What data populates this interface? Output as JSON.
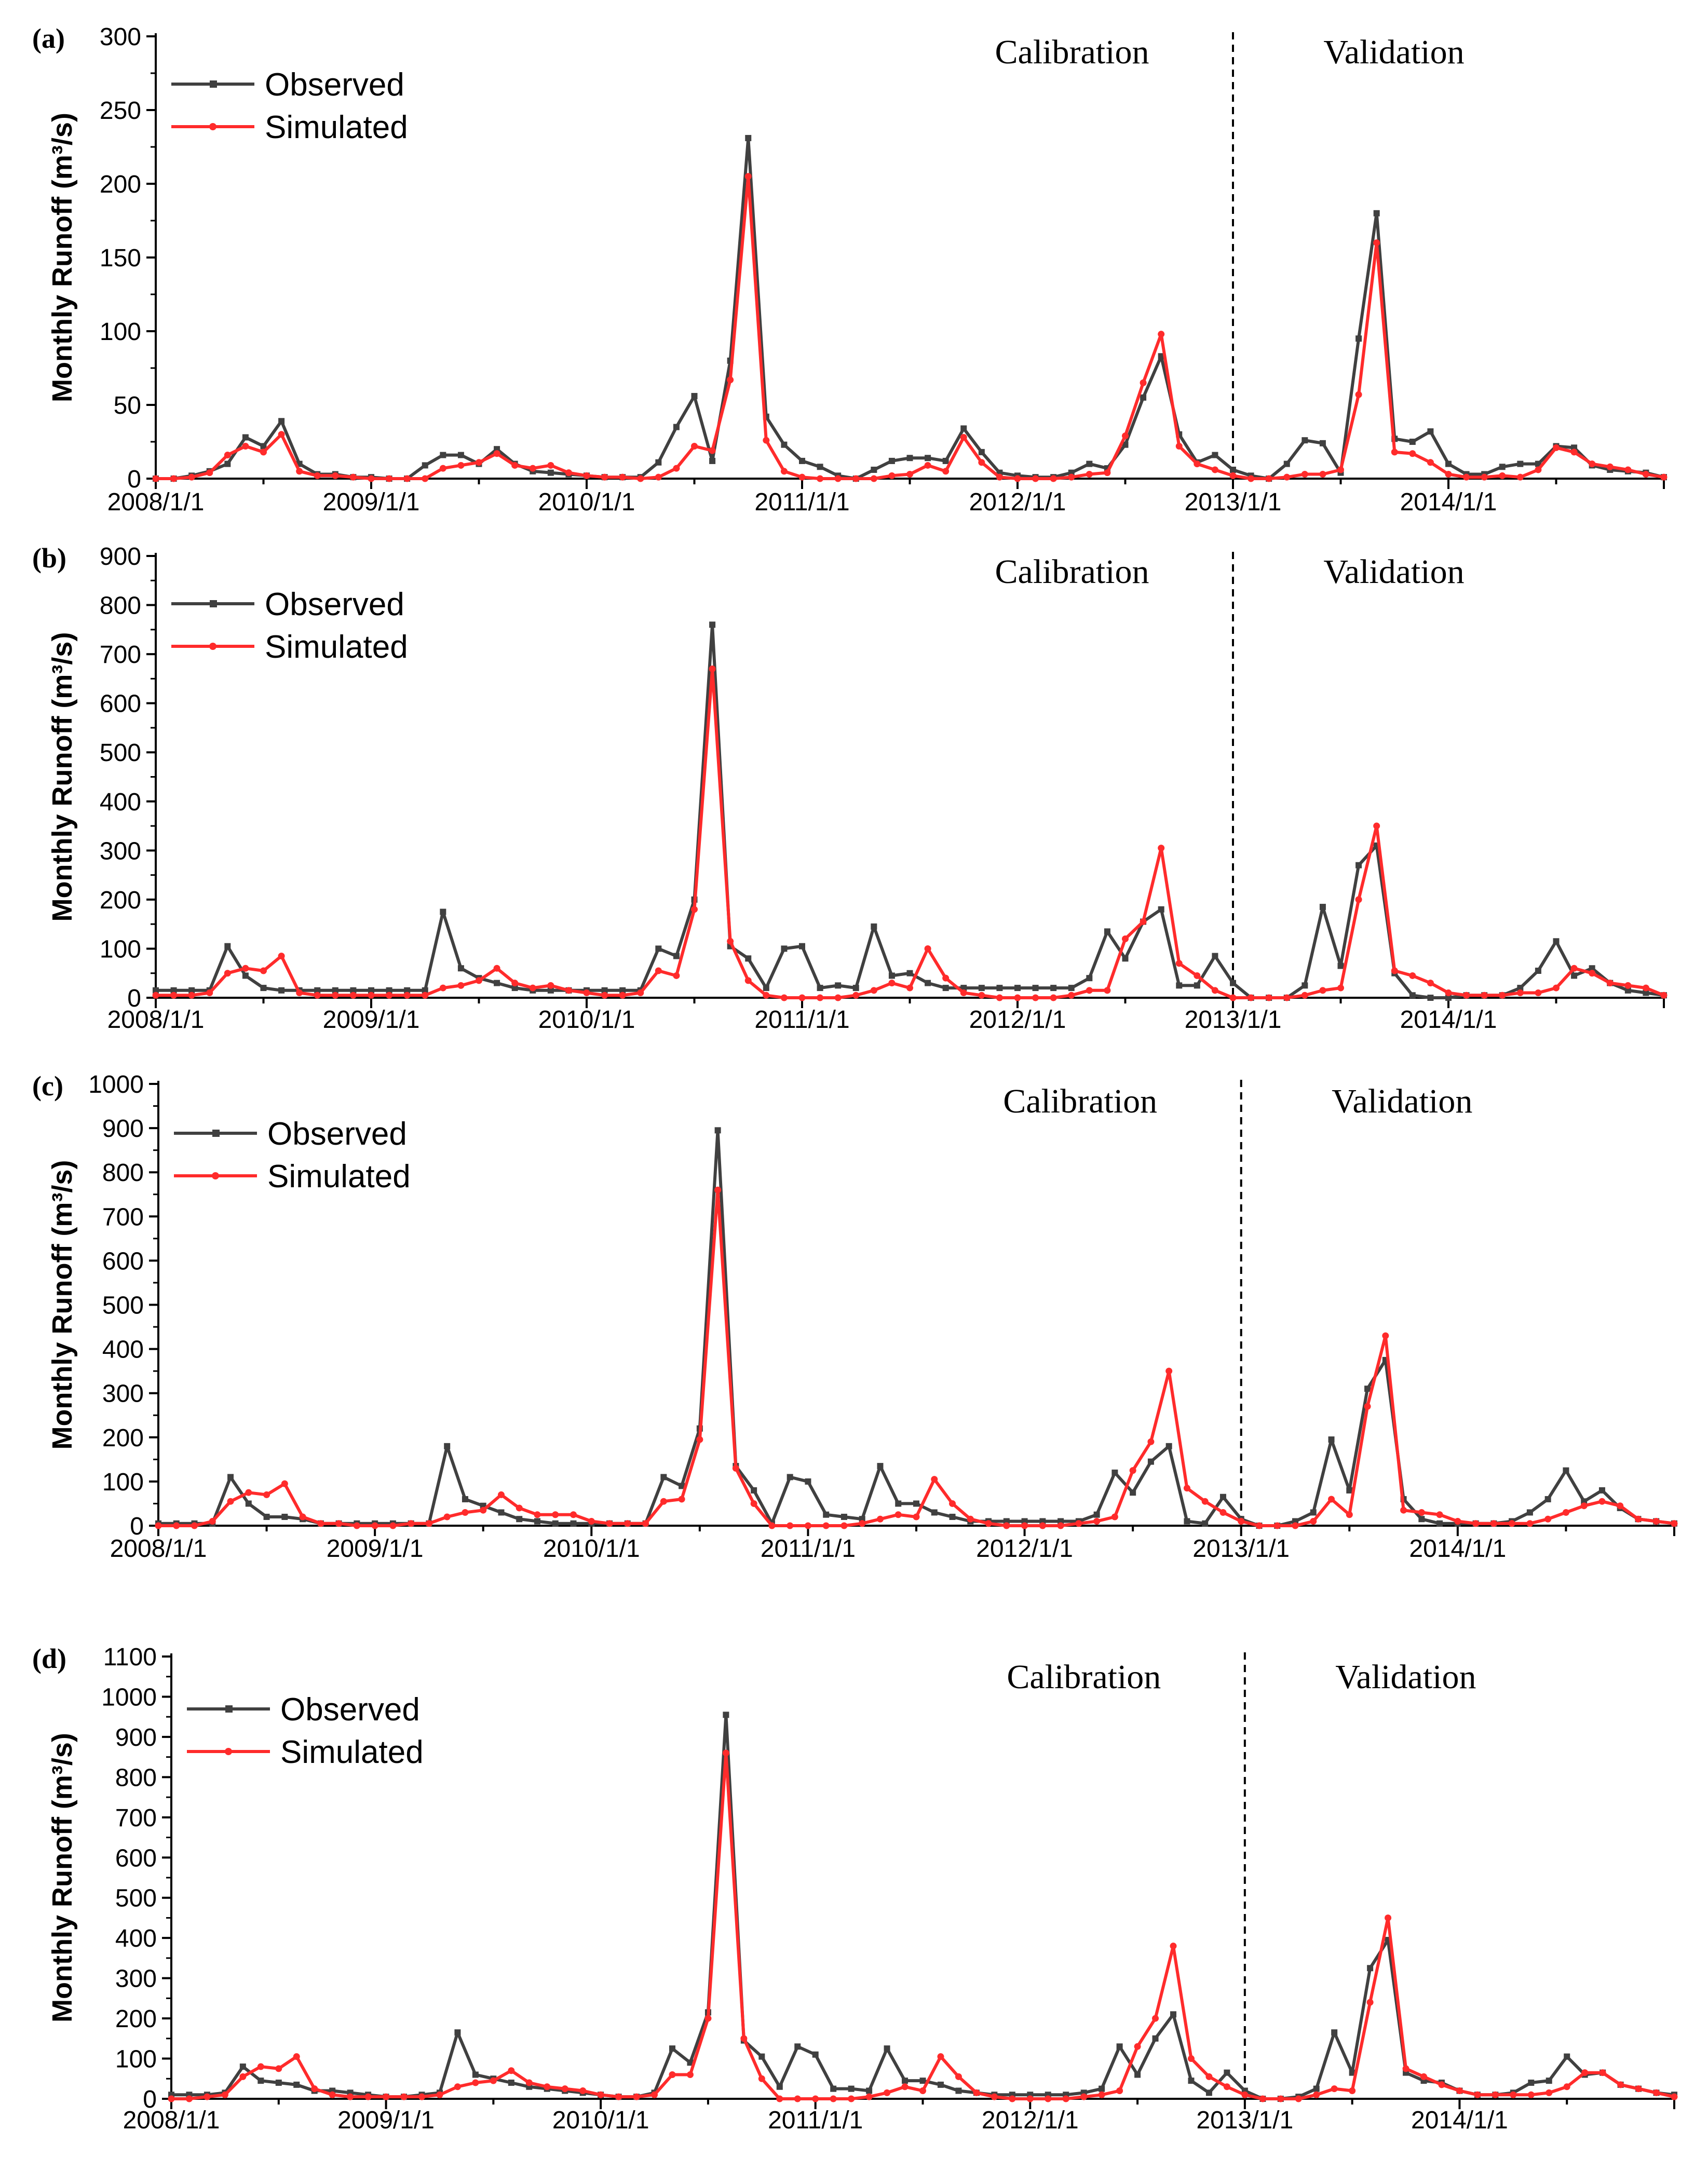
{
  "colors": {
    "observed": "#404040",
    "simulated": "#ff2b2b",
    "axis": "#000000"
  },
  "chart_data": [
    {
      "type": "line",
      "panel_label": "(a)",
      "ylabel": "Monthly Runoff (m³/s)",
      "ylim": [
        0,
        300
      ],
      "yticks": [
        0,
        50,
        100,
        150,
        200,
        250,
        300
      ],
      "xticks": [
        "2008/1/1",
        "2009/1/1",
        "2010/1/1",
        "2011/1/1",
        "2012/1/1",
        "2013/1/1",
        "2014/1/1"
      ],
      "split_month": 60,
      "period_labels": [
        "Calibration",
        "Validation"
      ],
      "legend": [
        "Observed",
        "Simulated"
      ],
      "series": [
        {
          "name": "Observed",
          "values": [
            0,
            0,
            2,
            5,
            10,
            28,
            22,
            39,
            10,
            3,
            3,
            1,
            1,
            0,
            0,
            9,
            16,
            16,
            10,
            20,
            10,
            5,
            4,
            3,
            2,
            1,
            1,
            1,
            11,
            35,
            56,
            12,
            80,
            231,
            42,
            23,
            12,
            8,
            2,
            0,
            6,
            12,
            14,
            14,
            12,
            34,
            18,
            4,
            2,
            1,
            1,
            4,
            10,
            7,
            23,
            55,
            83,
            30,
            11,
            16,
            6,
            2,
            0,
            10,
            26,
            24,
            4,
            95,
            180,
            27,
            25,
            32,
            10,
            3,
            3,
            8,
            10,
            10,
            22,
            21,
            9,
            6,
            5,
            4,
            1
          ]
        },
        {
          "name": "Simulated",
          "values": [
            0,
            0,
            1,
            4,
            16,
            22,
            18,
            30,
            5,
            2,
            2,
            1,
            0,
            0,
            0,
            0,
            7,
            9,
            11,
            17,
            9,
            7,
            9,
            4,
            2,
            1,
            1,
            0,
            1,
            7,
            22,
            19,
            67,
            205,
            26,
            5,
            1,
            0,
            0,
            0,
            0,
            2,
            3,
            9,
            5,
            28,
            11,
            1,
            0,
            0,
            0,
            1,
            3,
            4,
            29,
            65,
            98,
            22,
            10,
            6,
            2,
            0,
            0,
            1,
            3,
            3,
            6,
            57,
            160,
            18,
            17,
            11,
            3,
            1,
            1,
            2,
            1,
            6,
            21,
            18,
            10,
            8,
            6,
            3,
            1
          ]
        }
      ]
    },
    {
      "type": "line",
      "panel_label": "(b)",
      "ylabel": "Monthly Runoff (m³/s)",
      "ylim": [
        0,
        900
      ],
      "yticks": [
        0,
        100,
        200,
        300,
        400,
        500,
        600,
        700,
        800,
        900
      ],
      "xticks": [
        "2008/1/1",
        "2009/1/1",
        "2010/1/1",
        "2011/1/1",
        "2012/1/1",
        "2013/1/1",
        "2014/1/1"
      ],
      "split_month": 60,
      "period_labels": [
        "Calibration",
        "Validation"
      ],
      "legend": [
        "Observed",
        "Simulated"
      ],
      "series": [
        {
          "name": "Observed",
          "values": [
            15,
            15,
            15,
            15,
            105,
            45,
            20,
            15,
            15,
            15,
            15,
            15,
            15,
            15,
            15,
            15,
            175,
            60,
            40,
            30,
            20,
            15,
            15,
            15,
            15,
            15,
            15,
            15,
            100,
            85,
            200,
            760,
            105,
            80,
            20,
            100,
            105,
            20,
            25,
            20,
            145,
            45,
            50,
            30,
            20,
            20,
            20,
            20,
            20,
            20,
            20,
            20,
            40,
            135,
            80,
            155,
            180,
            25,
            25,
            85,
            30,
            0,
            0,
            0,
            25,
            185,
            65,
            270,
            310,
            50,
            5,
            0,
            0,
            5,
            5,
            5,
            20,
            55,
            115,
            45,
            60,
            30,
            15,
            10,
            5
          ]
        },
        {
          "name": "Simulated",
          "values": [
            5,
            5,
            5,
            10,
            50,
            60,
            55,
            85,
            10,
            5,
            5,
            5,
            5,
            5,
            5,
            5,
            20,
            25,
            35,
            60,
            30,
            20,
            25,
            15,
            10,
            5,
            5,
            10,
            55,
            45,
            180,
            670,
            115,
            35,
            5,
            0,
            0,
            0,
            0,
            5,
            15,
            30,
            20,
            100,
            40,
            10,
            5,
            0,
            0,
            0,
            0,
            5,
            15,
            15,
            120,
            155,
            305,
            70,
            45,
            15,
            0,
            0,
            0,
            0,
            5,
            15,
            20,
            200,
            350,
            55,
            45,
            30,
            10,
            5,
            5,
            5,
            10,
            10,
            20,
            60,
            50,
            30,
            25,
            20,
            5
          ]
        }
      ]
    },
    {
      "type": "line",
      "panel_label": "(c)",
      "ylabel": "Monthly Runoff (m³/s)",
      "ylim": [
        0,
        1000
      ],
      "yticks": [
        0,
        100,
        200,
        300,
        400,
        500,
        600,
        700,
        800,
        900,
        1000
      ],
      "xticks": [
        "2008/1/1",
        "2009/1/1",
        "2010/1/1",
        "2011/1/1",
        "2012/1/1",
        "2013/1/1",
        "2014/1/1"
      ],
      "split_month": 60,
      "period_labels": [
        "Calibration",
        "Validation"
      ],
      "legend": [
        "Observed",
        "Simulated"
      ],
      "series": [
        {
          "name": "Observed",
          "values": [
            5,
            5,
            5,
            5,
            110,
            50,
            20,
            20,
            15,
            5,
            5,
            5,
            5,
            5,
            5,
            5,
            180,
            60,
            45,
            30,
            15,
            10,
            5,
            5,
            5,
            5,
            5,
            5,
            110,
            90,
            220,
            895,
            135,
            80,
            5,
            110,
            100,
            25,
            20,
            15,
            135,
            50,
            50,
            30,
            20,
            10,
            10,
            10,
            10,
            10,
            10,
            10,
            25,
            120,
            75,
            145,
            180,
            10,
            5,
            65,
            15,
            0,
            0,
            10,
            30,
            195,
            80,
            310,
            375,
            60,
            15,
            5,
            5,
            5,
            5,
            10,
            30,
            60,
            125,
            55,
            80,
            40,
            15,
            10,
            5
          ]
        },
        {
          "name": "Simulated",
          "values": [
            0,
            0,
            0,
            10,
            55,
            75,
            70,
            95,
            20,
            5,
            5,
            0,
            0,
            0,
            5,
            5,
            20,
            30,
            35,
            70,
            40,
            25,
            25,
            25,
            10,
            5,
            5,
            5,
            55,
            60,
            195,
            760,
            130,
            50,
            0,
            0,
            0,
            0,
            0,
            5,
            15,
            25,
            20,
            105,
            50,
            15,
            5,
            0,
            0,
            0,
            0,
            5,
            10,
            20,
            125,
            190,
            350,
            85,
            55,
            30,
            10,
            0,
            0,
            0,
            10,
            60,
            25,
            270,
            430,
            35,
            30,
            25,
            10,
            5,
            5,
            5,
            5,
            15,
            30,
            45,
            55,
            45,
            15,
            10,
            5
          ]
        }
      ]
    },
    {
      "type": "line",
      "panel_label": "(d)",
      "ylabel": "Monthly Runoff (m³/s)",
      "ylim": [
        0,
        1100
      ],
      "yticks": [
        0,
        100,
        200,
        300,
        400,
        500,
        600,
        700,
        800,
        900,
        1000,
        1100
      ],
      "xticks": [
        "2008/1/1",
        "2009/1/1",
        "2010/1/1",
        "2011/1/1",
        "2012/1/1",
        "2013/1/1",
        "2014/1/1"
      ],
      "split_month": 60,
      "period_labels": [
        "Calibration",
        "Validation"
      ],
      "legend": [
        "Observed",
        "Simulated"
      ],
      "series": [
        {
          "name": "Observed",
          "values": [
            10,
            10,
            10,
            15,
            80,
            45,
            40,
            35,
            20,
            20,
            15,
            10,
            5,
            5,
            10,
            15,
            165,
            60,
            50,
            40,
            30,
            25,
            20,
            15,
            10,
            5,
            5,
            15,
            125,
            90,
            215,
            955,
            145,
            105,
            30,
            130,
            110,
            25,
            25,
            20,
            125,
            45,
            45,
            35,
            20,
            15,
            10,
            10,
            10,
            10,
            10,
            15,
            25,
            130,
            60,
            150,
            210,
            45,
            15,
            65,
            20,
            0,
            0,
            5,
            25,
            165,
            65,
            325,
            395,
            65,
            45,
            40,
            20,
            10,
            10,
            15,
            40,
            45,
            105,
            60,
            65,
            35,
            25,
            15,
            10
          ]
        },
        {
          "name": "Simulated",
          "values": [
            0,
            0,
            5,
            10,
            55,
            80,
            75,
            105,
            25,
            10,
            5,
            5,
            5,
            5,
            5,
            10,
            30,
            40,
            45,
            70,
            40,
            30,
            25,
            20,
            10,
            5,
            5,
            10,
            60,
            60,
            200,
            860,
            150,
            50,
            0,
            0,
            0,
            0,
            0,
            5,
            15,
            30,
            20,
            105,
            55,
            15,
            5,
            0,
            0,
            0,
            0,
            5,
            10,
            20,
            130,
            200,
            380,
            100,
            55,
            30,
            10,
            0,
            0,
            0,
            10,
            25,
            20,
            240,
            450,
            75,
            55,
            35,
            20,
            10,
            10,
            10,
            10,
            15,
            30,
            65,
            65,
            35,
            25,
            15,
            5
          ]
        }
      ]
    }
  ]
}
